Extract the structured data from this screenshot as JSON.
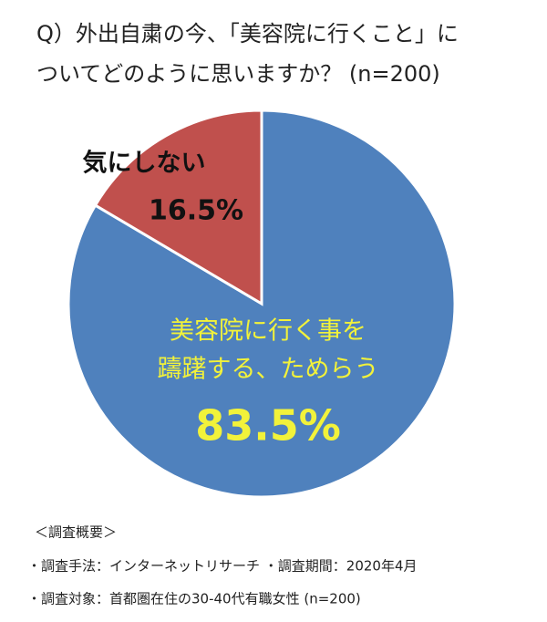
{
  "chart_data": {
    "type": "pie",
    "title_lines": [
      "Q）外出自粛の今、「美容院に行くこと」に",
      "ついてどのように思いますか？ (n=200)"
    ],
    "categories": [
      [
        "美容院に行く事を",
        "躊躇する、ためらう"
      ],
      [
        "気にしない"
      ]
    ],
    "values": [
      83.5,
      16.5
    ],
    "value_labels": [
      "83.5%",
      "16.5%"
    ],
    "colors": [
      "#4f81bd",
      "#c0504d"
    ],
    "notes": [
      "＜調査概要＞",
      "・調査手法：インターネットリサーチ ・調査期間：2020年4月",
      "・調査対象：首都圏在住の30-40代有職女性 (n=200)"
    ]
  }
}
